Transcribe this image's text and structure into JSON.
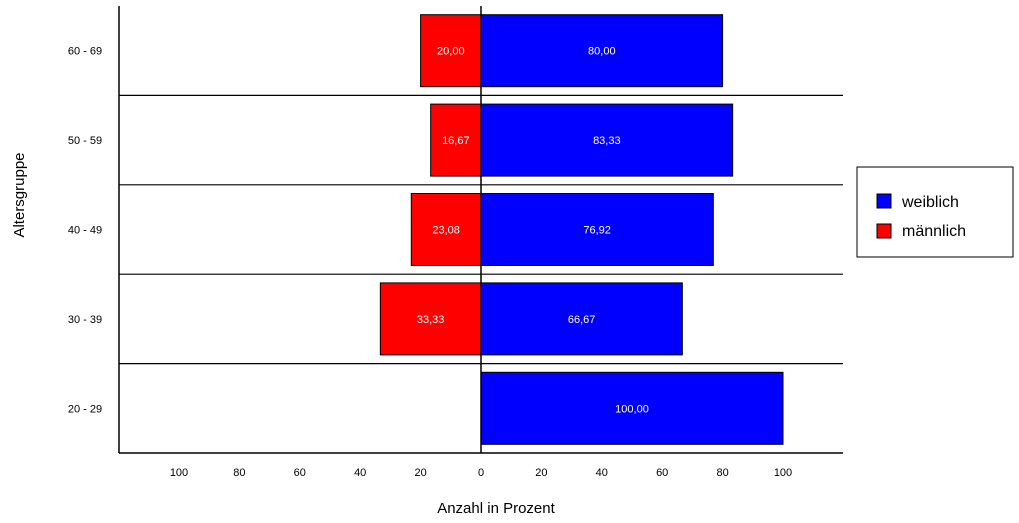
{
  "chart_data": {
    "type": "bar",
    "orientation": "horizontal",
    "layout": "population-pyramid",
    "title": "",
    "xlabel": "Anzahl in Prozent",
    "ylabel": "Altersgruppe",
    "categories": [
      "60 - 69",
      "50 - 59",
      "40 - 49",
      "30 - 39",
      "20 - 29"
    ],
    "series": [
      {
        "name": "weiblich",
        "color": "#0000ff",
        "side": "right",
        "values": [
          80.0,
          83.33,
          76.92,
          66.67,
          100.0
        ],
        "labels": [
          "80,00",
          "83,33",
          "76,92",
          "66,67",
          "100,00"
        ]
      },
      {
        "name": "männlich",
        "color": "#ff0000",
        "side": "left",
        "values": [
          20.0,
          16.67,
          23.08,
          33.33,
          0
        ],
        "labels": [
          "20,00",
          "16,67",
          "23,08",
          "33,33",
          ""
        ]
      }
    ],
    "xlim": [
      -120,
      120
    ],
    "xticks": [
      -100,
      -80,
      -60,
      -40,
      -20,
      0,
      20,
      40,
      60,
      80,
      100
    ],
    "xtick_labels": [
      "100",
      "80",
      "60",
      "40",
      "20",
      "0",
      "20",
      "40",
      "60",
      "80",
      "100"
    ],
    "grid": "horizontal separators between categories",
    "legend_position": "right",
    "legend": [
      {
        "label": "weiblich",
        "color": "#0000ff"
      },
      {
        "label": "männlich",
        "color": "#ff0000"
      }
    ]
  }
}
